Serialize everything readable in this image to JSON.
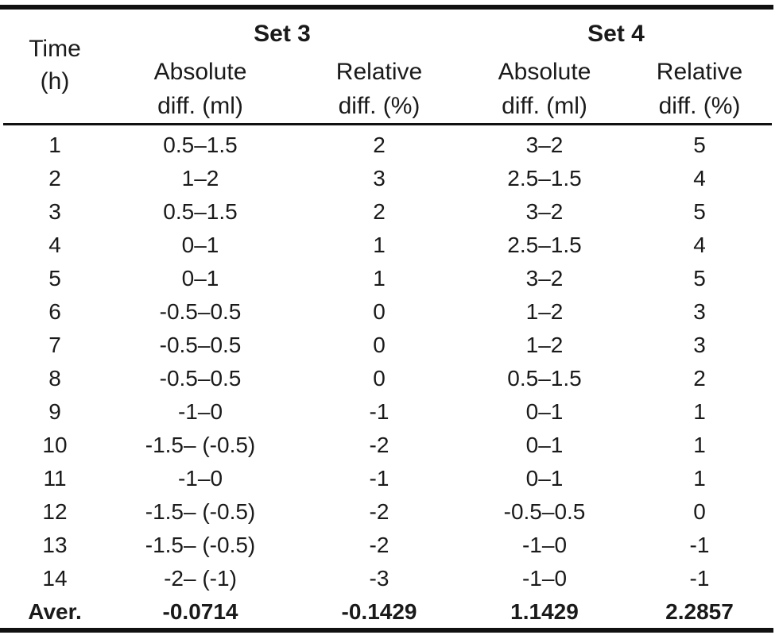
{
  "table": {
    "header": {
      "time_line1": "Time",
      "time_line2": "(h)",
      "set3_title": "Set 3",
      "set4_title": "Set 4",
      "set3_abs_line1": "Absolute",
      "set3_abs_line2": "diff. (ml)",
      "set3_rel_line1": "Relative",
      "set3_rel_line2": "diff. (%)",
      "set4_abs_line1": "Absolute",
      "set4_abs_line2": "diff. (ml)",
      "set4_rel_line1": "Relative",
      "set4_rel_line2": "diff. (%)"
    },
    "rows": [
      {
        "time": "1",
        "set3_abs": "0.5–1.5",
        "set3_rel": "2",
        "set4_abs": "3–2",
        "set4_rel": "5"
      },
      {
        "time": "2",
        "set3_abs": "1–2",
        "set3_rel": "3",
        "set4_abs": "2.5–1.5",
        "set4_rel": "4"
      },
      {
        "time": "3",
        "set3_abs": "0.5–1.5",
        "set3_rel": "2",
        "set4_abs": "3–2",
        "set4_rel": "5"
      },
      {
        "time": "4",
        "set3_abs": "0–1",
        "set3_rel": "1",
        "set4_abs": "2.5–1.5",
        "set4_rel": "4"
      },
      {
        "time": "5",
        "set3_abs": "0–1",
        "set3_rel": "1",
        "set4_abs": "3–2",
        "set4_rel": "5"
      },
      {
        "time": "6",
        "set3_abs": "-0.5–0.5",
        "set3_rel": "0",
        "set4_abs": "1–2",
        "set4_rel": "3"
      },
      {
        "time": "7",
        "set3_abs": "-0.5–0.5",
        "set3_rel": "0",
        "set4_abs": "1–2",
        "set4_rel": "3"
      },
      {
        "time": "8",
        "set3_abs": "-0.5–0.5",
        "set3_rel": "0",
        "set4_abs": "0.5–1.5",
        "set4_rel": "2"
      },
      {
        "time": "9",
        "set3_abs": "-1–0",
        "set3_rel": "-1",
        "set4_abs": "0–1",
        "set4_rel": "1"
      },
      {
        "time": "10",
        "set3_abs": "-1.5– (-0.5)",
        "set3_rel": "-2",
        "set4_abs": "0–1",
        "set4_rel": "1"
      },
      {
        "time": "11",
        "set3_abs": "-1–0",
        "set3_rel": "-1",
        "set4_abs": "0–1",
        "set4_rel": "1"
      },
      {
        "time": "12",
        "set3_abs": "-1.5– (-0.5)",
        "set3_rel": "-2",
        "set4_abs": "-0.5–0.5",
        "set4_rel": "0"
      },
      {
        "time": "13",
        "set3_abs": "-1.5– (-0.5)",
        "set3_rel": "-2",
        "set4_abs": "-1–0",
        "set4_rel": "-1"
      },
      {
        "time": "14",
        "set3_abs": "-2– (-1)",
        "set3_rel": "-3",
        "set4_abs": "-1–0",
        "set4_rel": "-1"
      }
    ],
    "average": {
      "label": "Aver.",
      "set3_abs": "-0.0714",
      "set3_rel": "-0.1429",
      "set4_abs": "1.1429",
      "set4_rel": "2.2857"
    }
  }
}
